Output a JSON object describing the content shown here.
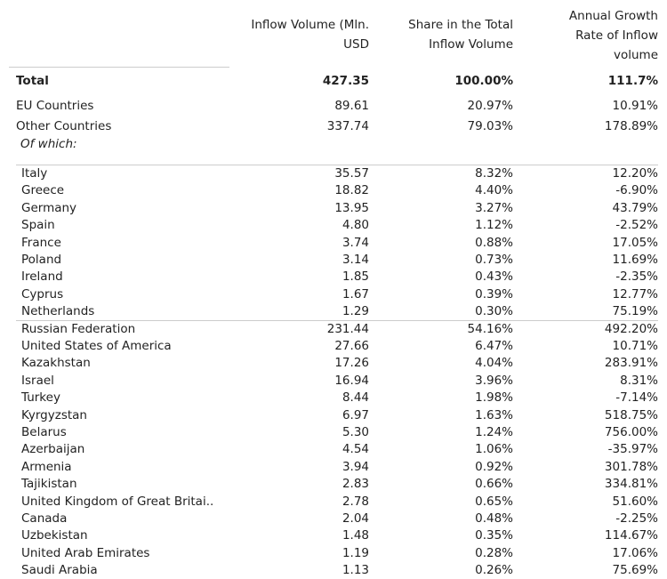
{
  "header": {
    "columns": [
      [
        "Inflow Volume (Mln.",
        "USD"
      ],
      [
        "Share in the Total",
        "Inflow Volume"
      ],
      [
        "Annual Growth",
        "Rate of Inflow",
        "volume"
      ]
    ]
  },
  "summary": [
    [
      "Total",
      "427.35",
      "100.00%",
      "111.7%"
    ],
    [
      "EU Countries",
      "89.61",
      "20.97%",
      "10.91%"
    ],
    [
      "Other Countries",
      "337.74",
      "79.03%",
      "178.89%"
    ]
  ],
  "note": "Of which:",
  "eu_countries": [
    [
      "Italy",
      "35.57",
      "8.32%",
      "12.20%"
    ],
    [
      "Greece",
      "18.82",
      "4.40%",
      "-6.90%"
    ],
    [
      "Germany",
      "13.95",
      "3.27%",
      "43.79%"
    ],
    [
      "Spain",
      "4.80",
      "1.12%",
      "-2.52%"
    ],
    [
      "France",
      "3.74",
      "0.88%",
      "17.05%"
    ],
    [
      "Poland",
      "3.14",
      "0.73%",
      "11.69%"
    ],
    [
      "Ireland",
      "1.85",
      "0.43%",
      "-2.35%"
    ],
    [
      "Cyprus",
      "1.67",
      "0.39%",
      "12.77%"
    ],
    [
      "Netherlands",
      "1.29",
      "0.30%",
      "75.19%"
    ]
  ],
  "other_countries": [
    [
      "Russian Federation",
      "231.44",
      "54.16%",
      "492.20%"
    ],
    [
      "United States of America",
      "27.66",
      "6.47%",
      "10.71%"
    ],
    [
      "Kazakhstan",
      "17.26",
      "4.04%",
      "283.91%"
    ],
    [
      "Israel",
      "16.94",
      "3.96%",
      "8.31%"
    ],
    [
      "Turkey",
      "8.44",
      "1.98%",
      "-7.14%"
    ],
    [
      "Kyrgyzstan",
      "6.97",
      "1.63%",
      "518.75%"
    ],
    [
      "Belarus",
      "5.30",
      "1.24%",
      "756.00%"
    ],
    [
      "Azerbaijan",
      "4.54",
      "1.06%",
      "-35.97%"
    ],
    [
      "Armenia",
      "3.94",
      "0.92%",
      "301.78%"
    ],
    [
      "Tajikistan",
      "2.83",
      "0.66%",
      "334.81%"
    ],
    [
      "United Kingdom of Great Britai..",
      "2.78",
      "0.65%",
      "51.60%"
    ],
    [
      "Canada",
      "2.04",
      "0.48%",
      "-2.25%"
    ],
    [
      "Uzbekistan",
      "1.48",
      "0.35%",
      "114.67%"
    ],
    [
      "United Arab Emirates",
      "1.19",
      "0.28%",
      "17.06%"
    ],
    [
      "Saudi Arabia",
      "1.13",
      "0.26%",
      "75.69%"
    ]
  ]
}
